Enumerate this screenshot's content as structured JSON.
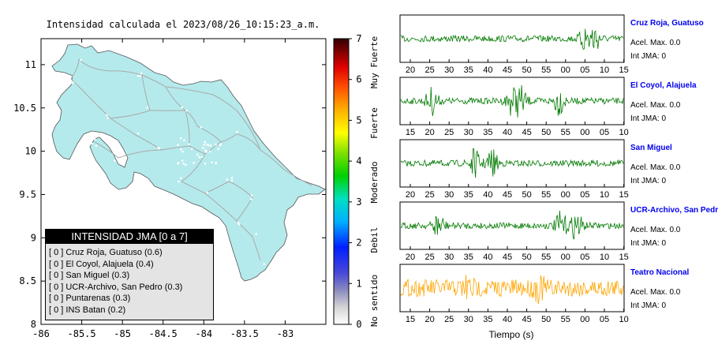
{
  "map": {
    "title": "Intensidad calculada el 2023/08/26_10:15:23_a.m.",
    "lon_ticks": [
      "-86",
      "-85.5",
      "-85",
      "-84.5",
      "-84",
      "-83.5",
      "-83"
    ],
    "lat_ticks": [
      "11",
      "10.5",
      "10",
      "9.5",
      "9",
      "8.5",
      "8"
    ],
    "xlim": [
      -86,
      -82.5
    ],
    "ylim": [
      8,
      11.3
    ],
    "land_color": "#b5eaec",
    "road_color": "#a9a9a9"
  },
  "colorbar": {
    "ticks": [
      "0",
      "1",
      "2",
      "3",
      "4",
      "5",
      "6",
      "7"
    ],
    "labels": [
      "No sentido",
      "Debil",
      "Moderado",
      "Fuerte",
      "Muy Fuerte"
    ]
  },
  "legend": {
    "header": "INTENSIDAD JMA [0 a 7]",
    "items": [
      {
        "code": "[ 0 ]",
        "label": "Cruz Roja, Guatuso (0.6)"
      },
      {
        "code": "[ 0 ]",
        "label": "El Coyol, Alajuela (0.4)"
      },
      {
        "code": "[ 0 ]",
        "label": "San Miguel (0.3)"
      },
      {
        "code": "[ 0 ]",
        "label": "UCR-Archivo, San Pedro (0.3)"
      },
      {
        "code": "[ 0 ]",
        "label": "Puntarenas (0.3)"
      },
      {
        "code": "[ 0 ]",
        "label": "INS Batan (0.2)"
      }
    ]
  },
  "chart_data": [
    {
      "type": "line",
      "title": "Intensidad calculada el 2023/08/26_10:15:23_a.m.",
      "xlabel": "",
      "ylabel": "",
      "xlim": [
        -86,
        -82.5
      ],
      "ylim": [
        8,
        11.3
      ],
      "note": "map"
    },
    {
      "type": "line",
      "xlabel": "Tiempo (s)",
      "traces": [
        {
          "station": "Cruz Roja, Guatuso",
          "acel": "Acel. Max. 0.0",
          "int": "Int JMA: 0",
          "color": "#007a00",
          "ticks": [
            "20",
            "25",
            "30",
            "35",
            "40",
            "45",
            "50",
            "55",
            "00",
            "05",
            "10",
            "15"
          ],
          "bursts": [
            0.83,
            0.87
          ]
        },
        {
          "station": "El Coyol, Alajuela",
          "acel": "Acel. Max. 0.0",
          "int": "Int JMA: 0",
          "color": "#007a00",
          "ticks": [
            "15",
            "20",
            "25",
            "30",
            "35",
            "40",
            "45",
            "50",
            "55",
            "00",
            "05",
            "10"
          ],
          "bursts": [
            0.14,
            0.5,
            0.54,
            0.71
          ]
        },
        {
          "station": "San Miguel",
          "acel": "Acel. Max. 0.0",
          "int": "Int JMA: 0",
          "color": "#007a00",
          "ticks": [
            "20",
            "25",
            "30",
            "35",
            "40",
            "45",
            "50",
            "55",
            "00",
            "05",
            "10",
            "15"
          ],
          "bursts": [
            0.33,
            0.41
          ]
        },
        {
          "station": "UCR-Archivo, San Pedro",
          "acel": "Acel. Max. 0.0",
          "int": "Int JMA: 0",
          "color": "#007a00",
          "ticks": [
            "20",
            "25",
            "30",
            "35",
            "40",
            "45",
            "50",
            "55",
            "00",
            "05",
            "10",
            "15"
          ],
          "bursts": [
            0.17,
            0.72,
            0.79
          ]
        },
        {
          "station": "Teatro Nacional",
          "acel": "Acel. Max. 0.0",
          "int": "Int JMA: 0",
          "color": "#ffa500",
          "ticks": [
            "15",
            "20",
            "25",
            "30",
            "35",
            "40",
            "45",
            "50",
            "55",
            "00",
            "05",
            "10"
          ],
          "bursts": [
            0.3,
            0.62
          ]
        }
      ]
    }
  ]
}
